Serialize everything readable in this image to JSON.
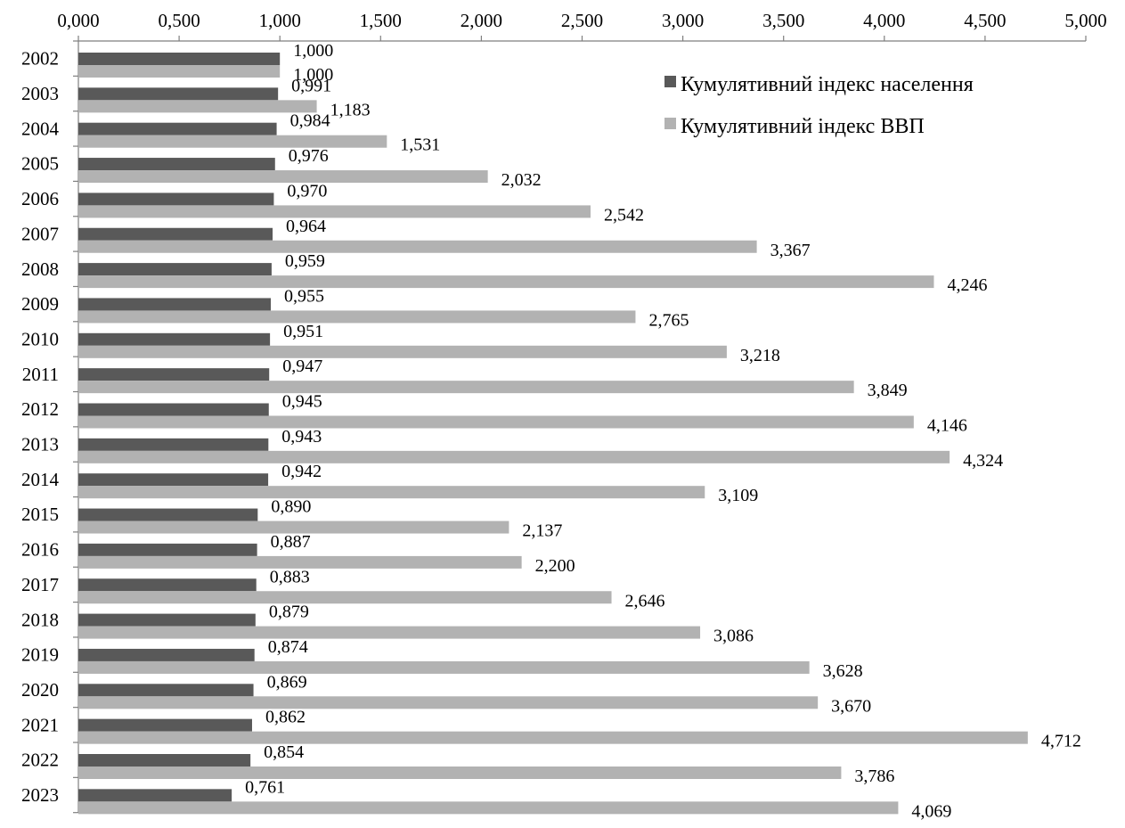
{
  "chart_data": {
    "type": "bar",
    "orientation": "horizontal",
    "categories": [
      "2002",
      "2003",
      "2004",
      "2005",
      "2006",
      "2007",
      "2008",
      "2009",
      "2010",
      "2011",
      "2012",
      "2013",
      "2014",
      "2015",
      "2016",
      "2017",
      "2018",
      "2019",
      "2020",
      "2021",
      "2022",
      "2023"
    ],
    "series": [
      {
        "name": "Кумулятивний індекс населення",
        "color": "#595959",
        "values": [
          1.0,
          0.991,
          0.984,
          0.976,
          0.97,
          0.964,
          0.959,
          0.955,
          0.951,
          0.947,
          0.945,
          0.943,
          0.942,
          0.89,
          0.887,
          0.883,
          0.879,
          0.874,
          0.869,
          0.862,
          0.854,
          0.761
        ],
        "labels": [
          "1,000",
          "0,991",
          "0,984",
          "0,976",
          "0,970",
          "0,964",
          "0,959",
          "0,955",
          "0,951",
          "0,947",
          "0,945",
          "0,943",
          "0,942",
          "0,890",
          "0,887",
          "0,883",
          "0,879",
          "0,874",
          "0,869",
          "0,862",
          "0,854",
          "0,761"
        ]
      },
      {
        "name": "Кумулятивний індекс ВВП",
        "color": "#b2b2b2",
        "values": [
          1.0,
          1.183,
          1.531,
          2.032,
          2.542,
          3.367,
          4.246,
          2.765,
          3.218,
          3.849,
          4.146,
          4.324,
          3.109,
          2.137,
          2.2,
          2.646,
          3.086,
          3.628,
          3.67,
          4.712,
          3.786,
          4.069
        ],
        "labels": [
          "1,000",
          "1,183",
          "1,531",
          "2,032",
          "2,542",
          "3,367",
          "4,246",
          "2,765",
          "3,218",
          "3,849",
          "4,146",
          "4,324",
          "3,109",
          "2,137",
          "2,200",
          "2,646",
          "3,086",
          "3,628",
          "3,670",
          "4,712",
          "3,786",
          "4,069"
        ]
      }
    ],
    "xlim": [
      0,
      5
    ],
    "x_ticks": [
      0,
      0.5,
      1,
      1.5,
      2,
      2.5,
      3,
      3.5,
      4,
      4.5,
      5
    ],
    "x_tick_labels": [
      "0,000",
      "0,500",
      "1,000",
      "1,500",
      "2,000",
      "2,500",
      "3,000",
      "3,500",
      "4,000",
      "4,500",
      "5,000"
    ],
    "x_axis_position": "top",
    "grid": false,
    "legend_position": "top-right",
    "title": "",
    "xlabel": "",
    "ylabel": ""
  }
}
